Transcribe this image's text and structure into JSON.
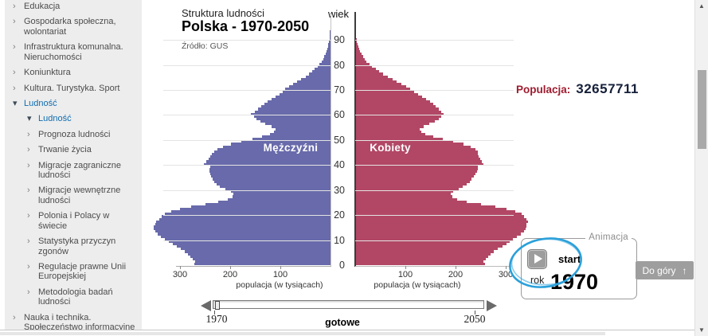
{
  "icons": {
    "collapsed": "›",
    "expanded": "▾",
    "play": "play-triangle",
    "up_arrow": "↑",
    "scroll_up": "▲",
    "scroll_down": "▼",
    "slider_left": "◀",
    "slider_right": "▶"
  },
  "sidebar": {
    "items": [
      {
        "label": "Edukacja",
        "level": 1,
        "state": "collapsed",
        "active": false
      },
      {
        "label": "Gospodarka społeczna, wolontariat",
        "level": 1,
        "state": "collapsed",
        "active": false
      },
      {
        "label": "Infrastruktura komunalna. Nieruchomości",
        "level": 1,
        "state": "collapsed",
        "active": false
      },
      {
        "label": "Koniunktura",
        "level": 1,
        "state": "collapsed",
        "active": false
      },
      {
        "label": "Kultura. Turystyka. Sport",
        "level": 1,
        "state": "collapsed",
        "active": false
      },
      {
        "label": "Ludność",
        "level": 1,
        "state": "expanded",
        "active": true
      },
      {
        "label": "Ludność",
        "level": 2,
        "state": "expanded",
        "active": true
      },
      {
        "label": "Prognoza ludności",
        "level": 2,
        "state": "collapsed",
        "active": false
      },
      {
        "label": "Trwanie życia",
        "level": 2,
        "state": "collapsed",
        "active": false
      },
      {
        "label": "Migracje zagraniczne ludności",
        "level": 2,
        "state": "collapsed",
        "active": false
      },
      {
        "label": "Migracje wewnętrzne ludności",
        "level": 2,
        "state": "collapsed",
        "active": false
      },
      {
        "label": "Polonia i Polacy w świecie",
        "level": 2,
        "state": "collapsed",
        "active": false
      },
      {
        "label": "Statystyka przyczyn zgonów",
        "level": 2,
        "state": "collapsed",
        "active": false
      },
      {
        "label": "Regulacje prawne Unii Europejskiej",
        "level": 2,
        "state": "collapsed",
        "active": false
      },
      {
        "label": "Metodologia badań ludności",
        "level": 2,
        "state": "collapsed",
        "active": false
      },
      {
        "label": "Nauka i technika. Społeczeństwo informacyjne",
        "level": 1,
        "state": "collapsed",
        "active": false
      }
    ]
  },
  "chart": {
    "subtitle": "Struktura ludności",
    "title": "Polska - 1970-2050",
    "source": "Źródło: GUS",
    "age_axis_label": "wiek",
    "x_axis_label": "populacja (w tysiącach)",
    "population_label": "Populacja:",
    "population_value": "32657711"
  },
  "chart_data": {
    "type": "bar",
    "subtype": "population-pyramid",
    "title": "Struktura ludności — Polska - 1970-2050",
    "source": "GUS",
    "year_shown": 1970,
    "population_total": 32657711,
    "age_min": 0,
    "age_max": 99,
    "age_ticks": [
      0,
      10,
      20,
      30,
      40,
      50,
      60,
      70,
      80,
      90
    ],
    "x_ticks_thousands": [
      100,
      200,
      300
    ],
    "x_unit": "populacja (w tysiącach)",
    "series": [
      {
        "name": "Mężczyźni",
        "side": "left",
        "color": "#686aab",
        "values_thousands": [
          272,
          270,
          274,
          279,
          284,
          290,
          298,
          307,
          315,
          322,
          330,
          338,
          345,
          350,
          353,
          352,
          350,
          347,
          342,
          336,
          330,
          318,
          300,
          278,
          250,
          224,
          205,
          196,
          194,
          198,
          210,
          220,
          227,
          232,
          235,
          238,
          240,
          242,
          241,
          239,
          252,
          248,
          243,
          239,
          236,
          232,
          225,
          214,
          199,
          178,
          155,
          136,
          120,
          112,
          110,
          118,
          130,
          140,
          147,
          152,
          158,
          151,
          144,
          138,
          132,
          126,
          118,
          110,
          102,
          96,
          90,
          82,
          74,
          66,
          58,
          50,
          43,
          37,
          31,
          26,
          22,
          18,
          15,
          12,
          10,
          8,
          6.5,
          5,
          4,
          3,
          2.3,
          1.8,
          1.4,
          1,
          0.8,
          0.6,
          0.4,
          0.3,
          0.2,
          0.1
        ]
      },
      {
        "name": "Kobiety",
        "side": "right",
        "color": "#b24765",
        "values_thousands": [
          258,
          256,
          260,
          265,
          270,
          276,
          284,
          293,
          301,
          308,
          315,
          322,
          330,
          336,
          340,
          341,
          342,
          344,
          341,
          337,
          331,
          319,
          301,
          279,
          250,
          223,
          203,
          193,
          191,
          195,
          206,
          215,
          222,
          228,
          232,
          236,
          240,
          243,
          244,
          245,
          255,
          253,
          249,
          246,
          245,
          244,
          239,
          230,
          216,
          196,
          174,
          155,
          139,
          131,
          129,
          137,
          148,
          158,
          166,
          172,
          176,
          172,
          167,
          161,
          155,
          149,
          142,
          134,
          126,
          118,
          110,
          101,
          92,
          83,
          74,
          65,
          56,
          48,
          41,
          34,
          28,
          23,
          19,
          15.5,
          12.5,
          10,
          8,
          6.3,
          4.9,
          3.8,
          2.9,
          2.2,
          1.7,
          1.3,
          1,
          0.7,
          0.5,
          0.35,
          0.25,
          0.15
        ]
      }
    ],
    "legend_position": "inside",
    "grid": true
  },
  "animation": {
    "legend": "Animacja",
    "start_label": "start",
    "year_label": "rok",
    "year_value": "1970"
  },
  "slider": {
    "min": "1970",
    "max": "2050",
    "status": "gotowe"
  },
  "back_to_top_label": "Do góry",
  "annotation": {
    "shape": "ellipse",
    "color": "#2aa0da",
    "target": "start-button"
  }
}
